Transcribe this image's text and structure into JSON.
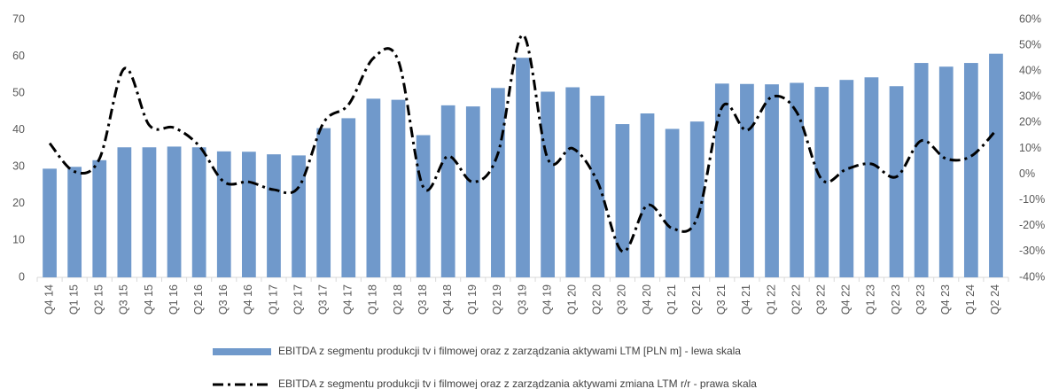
{
  "chart_data": {
    "type": "bar-line",
    "categories": [
      "Q4 14",
      "Q1 15",
      "Q2 15",
      "Q3 15",
      "Q4 15",
      "Q1 16",
      "Q2 16",
      "Q3 16",
      "Q4 16",
      "Q1 17",
      "Q2 17",
      "Q3 17",
      "Q4 17",
      "Q1 18",
      "Q2 18",
      "Q3 18",
      "Q4 18",
      "Q1 19",
      "Q2 19",
      "Q3 19",
      "Q4 19",
      "Q1 20",
      "Q2 20",
      "Q3 20",
      "Q4 20",
      "Q1 21",
      "Q2 21",
      "Q3 21",
      "Q4 21",
      "Q1 22",
      "Q2 22",
      "Q3 22",
      "Q4 22",
      "Q1 23",
      "Q2 23",
      "Q3 23",
      "Q4 23",
      "Q1 24",
      "Q2 24"
    ],
    "series": [
      {
        "name": "EBITDA z segmentu produkcji tv i filmowej oraz z zarządzania aktywami LTM [PLN m] - lewa skala",
        "type": "bar",
        "color": "#7099cb",
        "values": [
          29.5,
          30,
          31.8,
          35.3,
          35.3,
          35.5,
          35.3,
          34.2,
          34.1,
          33.4,
          33.1,
          40.5,
          43.2,
          48.5,
          48.2,
          38.6,
          46.7,
          46.4,
          51.4,
          59.6,
          50.4,
          51.6,
          49.3,
          41.6,
          44.5,
          40.3,
          42.3,
          52.6,
          52.5,
          52.4,
          52.8,
          51.7,
          53.6,
          54.3,
          51.9,
          58.2,
          57.2,
          58.2,
          60.7
        ]
      },
      {
        "name": "EBITDA z segmentu produkcji tv i filmowej oraz z zarządzania aktywami zmiana LTM r/r - prawa skala",
        "type": "line",
        "color": "#000000",
        "axis": "y2",
        "values": [
          12,
          1,
          6,
          41,
          19,
          18,
          11,
          -3,
          -3,
          -6,
          -5,
          20,
          27,
          45,
          44,
          -5,
          7,
          -3,
          8,
          54,
          6,
          10,
          -3,
          -30,
          -12,
          -21,
          -17,
          26,
          17,
          30,
          24,
          -2,
          2,
          4,
          -1,
          13,
          6,
          7,
          17
        ]
      }
    ],
    "ylim": [
      0,
      70
    ],
    "yticks": [
      0,
      10,
      20,
      30,
      40,
      50,
      60,
      70
    ],
    "y2lim": [
      -40,
      60
    ],
    "y2ticks": [
      {
        "value": -40,
        "label": "-40%"
      },
      {
        "value": -30,
        "label": "-30%"
      },
      {
        "value": -20,
        "label": "-20%"
      },
      {
        "value": -10,
        "label": "-10%"
      },
      {
        "value": 0,
        "label": "0%"
      },
      {
        "value": 10,
        "label": "10%"
      },
      {
        "value": 20,
        "label": "20%"
      },
      {
        "value": 30,
        "label": "30%"
      },
      {
        "value": 40,
        "label": "40%"
      },
      {
        "value": 50,
        "label": "50%"
      },
      {
        "value": 60,
        "label": "60%"
      }
    ],
    "legend": "bottom"
  }
}
